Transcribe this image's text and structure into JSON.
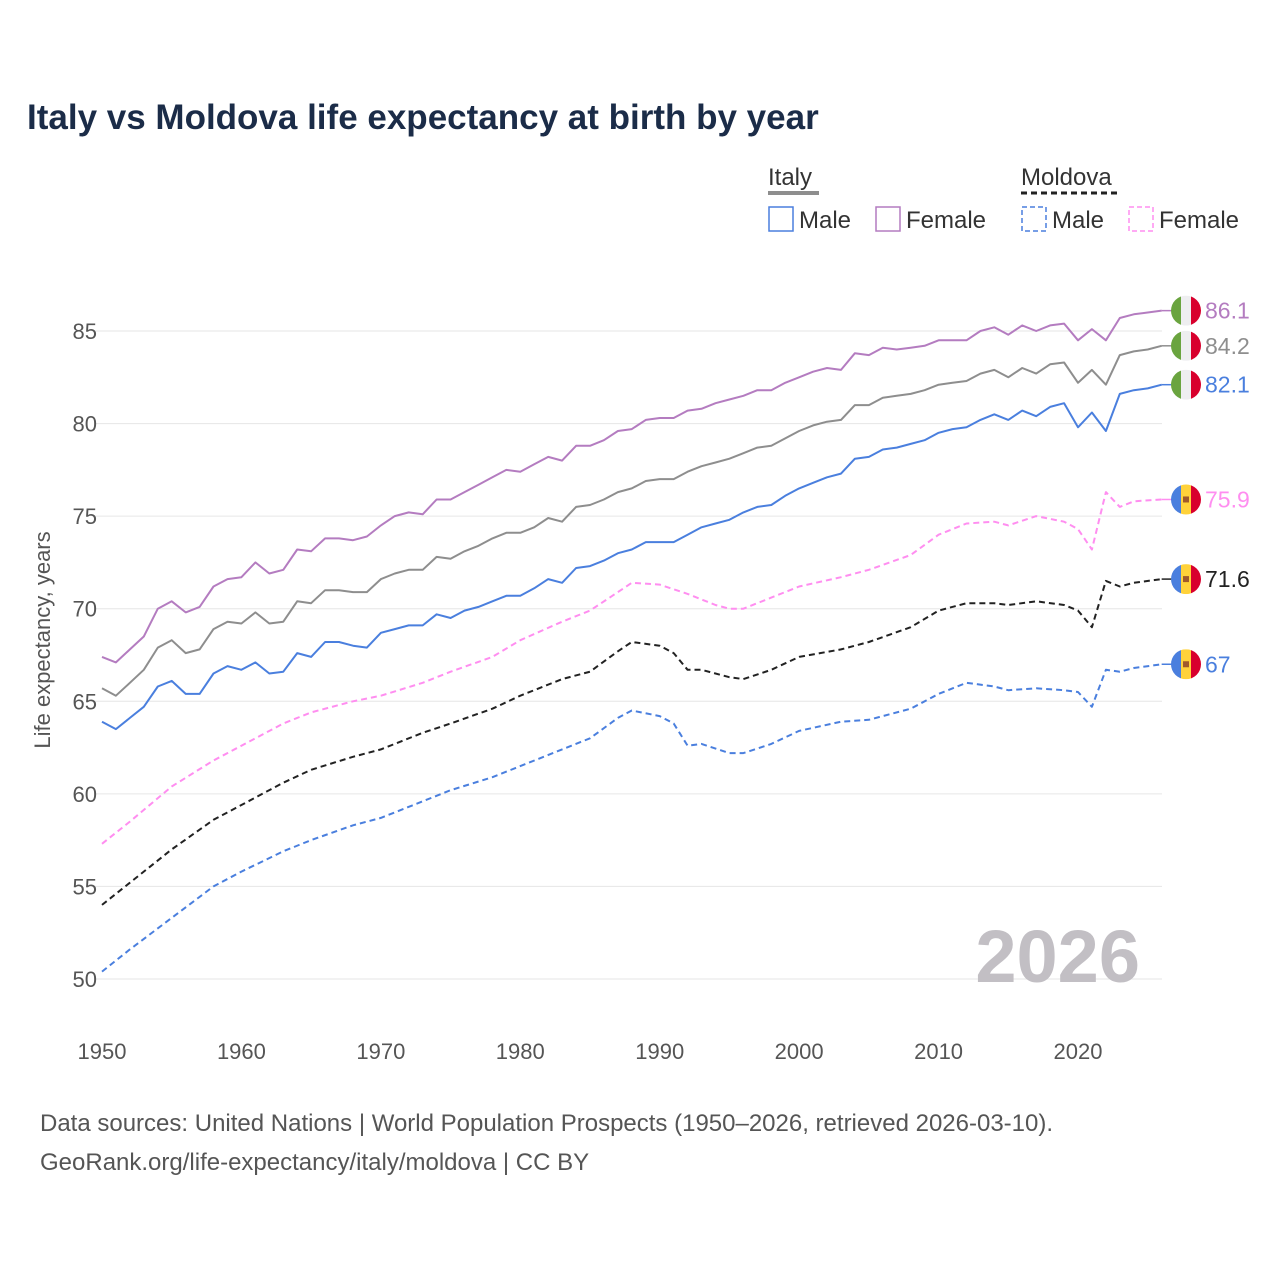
{
  "chart_data": {
    "type": "line",
    "title": "Italy vs Moldova life expectancy at birth by year",
    "xlabel": "",
    "ylabel": "Life expectancy, years",
    "xlim": [
      1950,
      2026
    ],
    "ylim": [
      50,
      86
    ],
    "x_ticks": [
      1950,
      1960,
      1970,
      1980,
      1990,
      2000,
      2010,
      2020
    ],
    "y_ticks": [
      50,
      55,
      60,
      65,
      70,
      75,
      80,
      85
    ],
    "grid": true,
    "legend": {
      "placement": "top-right",
      "groups": [
        {
          "label": "Italy",
          "items": [
            "Male",
            "Female"
          ]
        },
        {
          "label": "Moldova",
          "items": [
            "Male",
            "Female"
          ]
        }
      ]
    },
    "year_watermark": "2026",
    "series": [
      {
        "name": "Italy Female",
        "country": "Italy",
        "color": "#b47cc0",
        "dashed": false,
        "end_label": "86.1",
        "x": [
          1950,
          1951,
          1952,
          1953,
          1954,
          1955,
          1956,
          1957,
          1958,
          1959,
          1960,
          1961,
          1962,
          1963,
          1964,
          1965,
          1966,
          1967,
          1968,
          1969,
          1970,
          1971,
          1972,
          1973,
          1974,
          1975,
          1976,
          1977,
          1978,
          1979,
          1980,
          1981,
          1982,
          1983,
          1984,
          1985,
          1986,
          1987,
          1988,
          1989,
          1990,
          1991,
          1992,
          1993,
          1994,
          1995,
          1996,
          1997,
          1998,
          1999,
          2000,
          2001,
          2002,
          2003,
          2004,
          2005,
          2006,
          2007,
          2008,
          2009,
          2010,
          2011,
          2012,
          2013,
          2014,
          2015,
          2016,
          2017,
          2018,
          2019,
          2020,
          2021,
          2022,
          2023,
          2024,
          2025,
          2026
        ],
        "y": [
          67.4,
          67.1,
          67.8,
          68.5,
          70.0,
          70.4,
          69.8,
          70.1,
          71.2,
          71.6,
          71.7,
          72.5,
          71.9,
          72.1,
          73.2,
          73.1,
          73.8,
          73.8,
          73.7,
          73.9,
          74.5,
          75.0,
          75.2,
          75.1,
          75.9,
          75.9,
          76.3,
          76.7,
          77.1,
          77.5,
          77.4,
          77.8,
          78.2,
          78.0,
          78.8,
          78.8,
          79.1,
          79.6,
          79.7,
          80.2,
          80.3,
          80.3,
          80.7,
          80.8,
          81.1,
          81.3,
          81.5,
          81.8,
          81.8,
          82.2,
          82.5,
          82.8,
          83.0,
          82.9,
          83.8,
          83.7,
          84.1,
          84.0,
          84.1,
          84.2,
          84.5,
          84.5,
          84.5,
          85.0,
          85.2,
          84.8,
          85.3,
          85.0,
          85.3,
          85.4,
          84.5,
          85.1,
          84.5,
          85.7,
          85.9,
          86.0,
          86.1
        ]
      },
      {
        "name": "Italy Total",
        "country": "Italy",
        "color": "#8e8e8e",
        "dashed": false,
        "end_label": "84.2",
        "x": [
          1950,
          1951,
          1952,
          1953,
          1954,
          1955,
          1956,
          1957,
          1958,
          1959,
          1960,
          1961,
          1962,
          1963,
          1964,
          1965,
          1966,
          1967,
          1968,
          1969,
          1970,
          1971,
          1972,
          1973,
          1974,
          1975,
          1976,
          1977,
          1978,
          1979,
          1980,
          1981,
          1982,
          1983,
          1984,
          1985,
          1986,
          1987,
          1988,
          1989,
          1990,
          1991,
          1992,
          1993,
          1994,
          1995,
          1996,
          1997,
          1998,
          1999,
          2000,
          2001,
          2002,
          2003,
          2004,
          2005,
          2006,
          2007,
          2008,
          2009,
          2010,
          2011,
          2012,
          2013,
          2014,
          2015,
          2016,
          2017,
          2018,
          2019,
          2020,
          2021,
          2022,
          2023,
          2024,
          2025,
          2026
        ],
        "y": [
          65.7,
          65.3,
          66.0,
          66.7,
          67.9,
          68.3,
          67.6,
          67.8,
          68.9,
          69.3,
          69.2,
          69.8,
          69.2,
          69.3,
          70.4,
          70.3,
          71.0,
          71.0,
          70.9,
          70.9,
          71.6,
          71.9,
          72.1,
          72.1,
          72.8,
          72.7,
          73.1,
          73.4,
          73.8,
          74.1,
          74.1,
          74.4,
          74.9,
          74.7,
          75.5,
          75.6,
          75.9,
          76.3,
          76.5,
          76.9,
          77.0,
          77.0,
          77.4,
          77.7,
          77.9,
          78.1,
          78.4,
          78.7,
          78.8,
          79.2,
          79.6,
          79.9,
          80.1,
          80.2,
          81.0,
          81.0,
          81.4,
          81.5,
          81.6,
          81.8,
          82.1,
          82.2,
          82.3,
          82.7,
          82.9,
          82.5,
          83.0,
          82.7,
          83.2,
          83.3,
          82.2,
          82.9,
          82.1,
          83.7,
          83.9,
          84.0,
          84.2
        ]
      },
      {
        "name": "Italy Male",
        "country": "Italy",
        "color": "#4a7fde",
        "dashed": false,
        "end_label": "82.1",
        "x": [
          1950,
          1951,
          1952,
          1953,
          1954,
          1955,
          1956,
          1957,
          1958,
          1959,
          1960,
          1961,
          1962,
          1963,
          1964,
          1965,
          1966,
          1967,
          1968,
          1969,
          1970,
          1971,
          1972,
          1973,
          1974,
          1975,
          1976,
          1977,
          1978,
          1979,
          1980,
          1981,
          1982,
          1983,
          1984,
          1985,
          1986,
          1987,
          1988,
          1989,
          1990,
          1991,
          1992,
          1993,
          1994,
          1995,
          1996,
          1997,
          1998,
          1999,
          2000,
          2001,
          2002,
          2003,
          2004,
          2005,
          2006,
          2007,
          2008,
          2009,
          2010,
          2011,
          2012,
          2013,
          2014,
          2015,
          2016,
          2017,
          2018,
          2019,
          2020,
          2021,
          2022,
          2023,
          2024,
          2025,
          2026
        ],
        "y": [
          63.9,
          63.5,
          64.1,
          64.7,
          65.8,
          66.1,
          65.4,
          65.4,
          66.5,
          66.9,
          66.7,
          67.1,
          66.5,
          66.6,
          67.6,
          67.4,
          68.2,
          68.2,
          68.0,
          67.9,
          68.7,
          68.9,
          69.1,
          69.1,
          69.7,
          69.5,
          69.9,
          70.1,
          70.4,
          70.7,
          70.7,
          71.1,
          71.6,
          71.4,
          72.2,
          72.3,
          72.6,
          73.0,
          73.2,
          73.6,
          73.6,
          73.6,
          74.0,
          74.4,
          74.6,
          74.8,
          75.2,
          75.5,
          75.6,
          76.1,
          76.5,
          76.8,
          77.1,
          77.3,
          78.1,
          78.2,
          78.6,
          78.7,
          78.9,
          79.1,
          79.5,
          79.7,
          79.8,
          80.2,
          80.5,
          80.2,
          80.7,
          80.4,
          80.9,
          81.1,
          79.8,
          80.6,
          79.6,
          81.6,
          81.8,
          81.9,
          82.1
        ]
      },
      {
        "name": "Moldova Female",
        "country": "Moldova",
        "color": "#ff8ef0",
        "dashed": true,
        "end_label": "75.9",
        "x": [
          1950,
          1952,
          1955,
          1958,
          1960,
          1963,
          1965,
          1968,
          1970,
          1973,
          1975,
          1978,
          1980,
          1983,
          1985,
          1987,
          1988,
          1990,
          1992,
          1994,
          1995,
          1996,
          1998,
          2000,
          2003,
          2005,
          2008,
          2010,
          2012,
          2014,
          2015,
          2017,
          2019,
          2020,
          2021,
          2022,
          2023,
          2024,
          2026
        ],
        "y": [
          57.3,
          58.5,
          60.4,
          61.8,
          62.6,
          63.8,
          64.4,
          65.0,
          65.3,
          66.0,
          66.6,
          67.4,
          68.3,
          69.3,
          69.9,
          70.9,
          71.4,
          71.3,
          70.8,
          70.2,
          70.0,
          70.0,
          70.6,
          71.2,
          71.7,
          72.1,
          72.9,
          74.0,
          74.6,
          74.7,
          74.5,
          75.0,
          74.7,
          74.3,
          73.2,
          76.3,
          75.5,
          75.8,
          75.9
        ]
      },
      {
        "name": "Moldova Total",
        "country": "Moldova",
        "color": "#222222",
        "dashed": true,
        "end_label": "71.6",
        "x": [
          1950,
          1952,
          1955,
          1958,
          1960,
          1963,
          1965,
          1968,
          1970,
          1973,
          1975,
          1978,
          1980,
          1983,
          1985,
          1987,
          1988,
          1990,
          1991,
          1992,
          1993,
          1995,
          1996,
          1998,
          2000,
          2003,
          2005,
          2008,
          2010,
          2012,
          2014,
          2015,
          2017,
          2019,
          2020,
          2021,
          2022,
          2023,
          2024,
          2026
        ],
        "y": [
          54.0,
          55.2,
          57.0,
          58.6,
          59.4,
          60.6,
          61.3,
          62.0,
          62.4,
          63.3,
          63.8,
          64.6,
          65.3,
          66.2,
          66.6,
          67.7,
          68.2,
          68.0,
          67.6,
          66.7,
          66.7,
          66.3,
          66.2,
          66.7,
          67.4,
          67.8,
          68.2,
          69.0,
          69.9,
          70.3,
          70.3,
          70.2,
          70.4,
          70.2,
          69.9,
          69.0,
          71.5,
          71.2,
          71.4,
          71.6
        ]
      },
      {
        "name": "Moldova Male",
        "country": "Moldova",
        "color": "#4a7fde",
        "dashed": true,
        "end_label": "67",
        "x": [
          1950,
          1952,
          1955,
          1958,
          1960,
          1963,
          1965,
          1968,
          1970,
          1973,
          1975,
          1978,
          1980,
          1983,
          1985,
          1987,
          1988,
          1990,
          1991,
          1992,
          1993,
          1995,
          1996,
          1998,
          2000,
          2003,
          2005,
          2008,
          2010,
          2012,
          2014,
          2015,
          2017,
          2019,
          2020,
          2021,
          2022,
          2023,
          2024,
          2026
        ],
        "y": [
          50.4,
          51.6,
          53.3,
          55.0,
          55.8,
          56.9,
          57.5,
          58.3,
          58.7,
          59.6,
          60.2,
          60.9,
          61.5,
          62.4,
          63.0,
          64.1,
          64.5,
          64.2,
          63.8,
          62.6,
          62.7,
          62.2,
          62.2,
          62.7,
          63.4,
          63.9,
          64.0,
          64.6,
          65.4,
          66.0,
          65.8,
          65.6,
          65.7,
          65.6,
          65.5,
          64.7,
          66.7,
          66.6,
          66.8,
          67.0
        ]
      }
    ]
  },
  "legend_labels": {
    "italy": "Italy",
    "moldova": "Moldova",
    "male": "Male",
    "female": "Female"
  },
  "source_line1": "Data sources: United Nations | World Population Prospects (1950–2026, retrieved 2026-03-10).",
  "source_line2": "GeoRank.org/life-expectancy/italy/moldova | CC BY"
}
